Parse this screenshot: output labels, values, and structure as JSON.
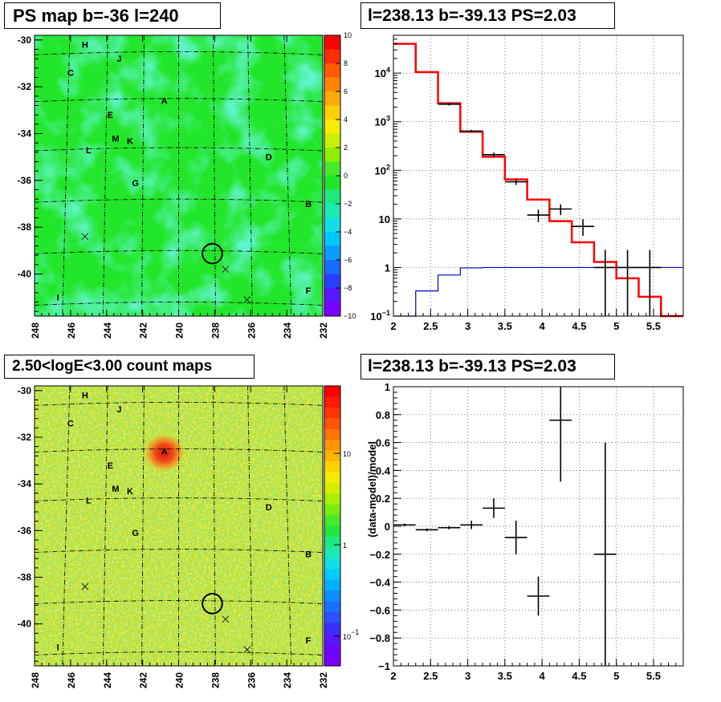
{
  "titles": {
    "ps_map": "PS map b=-36 l=240",
    "spectrum": "l=238.13 b=-39.13 PS=2.03",
    "count_map": "2.50<logE<3.00 count maps",
    "residual": "l=238.13 b=-39.13 PS=2.03"
  },
  "colors": {
    "data": "#000000",
    "model": "#ff0000",
    "third_series": "#0000cc",
    "map_green": "#22e62a",
    "map_cyan": "#1ee9a0",
    "hotspot": "#e81818"
  },
  "chart_data": [
    {
      "type": "heatmap",
      "title": "PS map b=-36 l=240",
      "x_ticks": [
        "248",
        "246",
        "244",
        "242",
        "240",
        "238",
        "236",
        "234",
        "232"
      ],
      "y_ticks": [
        "-30",
        "-32",
        "-34",
        "-36",
        "-38",
        "-40"
      ],
      "xlim": [
        248,
        232
      ],
      "ylim": [
        -41.8,
        -29.8
      ],
      "colorbar": {
        "range": [
          -10,
          10
        ],
        "ticks": [
          "10",
          "8",
          "6",
          "4",
          "2",
          "0",
          "-2",
          "-4",
          "-6",
          "-8",
          "-10"
        ]
      },
      "sources": [
        {
          "label": "H",
          "l": 245.2,
          "b": -30.2
        },
        {
          "label": "J",
          "l": 243.3,
          "b": -30.8
        },
        {
          "label": "C",
          "l": 246.0,
          "b": -31.4
        },
        {
          "label": "A",
          "l": 240.8,
          "b": -32.6
        },
        {
          "label": "E",
          "l": 243.8,
          "b": -33.2
        },
        {
          "label": "M",
          "l": 243.5,
          "b": -34.2
        },
        {
          "label": "K",
          "l": 242.7,
          "b": -34.3
        },
        {
          "label": "L",
          "l": 245.0,
          "b": -34.7
        },
        {
          "label": "D",
          "l": 235.0,
          "b": -35.0
        },
        {
          "label": "G",
          "l": 242.4,
          "b": -36.1
        },
        {
          "label": "B",
          "l": 232.8,
          "b": -37.0
        },
        {
          "label": "I",
          "l": 246.7,
          "b": -41.0
        },
        {
          "label": "F",
          "l": 232.8,
          "b": -40.7
        }
      ],
      "crosses": [
        {
          "l": 245.2,
          "b": -38.4
        },
        {
          "l": 237.4,
          "b": -39.8
        },
        {
          "l": 236.2,
          "b": -41.1
        }
      ],
      "circle": {
        "l": 238.13,
        "b": -39.13,
        "r": 0.55
      }
    },
    {
      "type": "line",
      "title": "l=238.13 b=-39.13 PS=2.03",
      "xlim": [
        2,
        5.9
      ],
      "ylim": [
        0.1,
        60000
      ],
      "yscale": "log",
      "x_ticks": [
        "2",
        "2.5",
        "3",
        "3.5",
        "4",
        "4.5",
        "5",
        "5.5"
      ],
      "y_ticks": [
        {
          "v": 0.1,
          "label": "10^-1"
        },
        {
          "v": 1,
          "label": "1"
        },
        {
          "v": 10,
          "label": "10"
        },
        {
          "v": 100,
          "label": "10^2"
        },
        {
          "v": 1000,
          "label": "10^3"
        },
        {
          "v": 10000,
          "label": "10^4"
        }
      ],
      "grid": true,
      "edges": [
        2.0,
        2.3,
        2.6,
        2.9,
        3.2,
        3.5,
        3.8,
        4.1,
        4.4,
        4.7,
        5.0,
        5.3,
        5.6,
        5.9
      ],
      "series": [
        {
          "values": [
            40000,
            10500,
            2400,
            620,
            190,
            65,
            25,
            9,
            3.3,
            1.3,
            0.6,
            0.25,
            0.1
          ]
        },
        {
          "values": [
            0.1,
            0.33,
            0.7,
            0.98,
            1.0,
            1.0,
            1.0,
            1.0,
            1.0,
            1.0,
            1.0,
            1.0,
            1.0
          ]
        }
      ],
      "data_points": [
        {
          "x": 2.75,
          "y": 2300,
          "lo": 2150,
          "hi": 2450
        },
        {
          "x": 3.05,
          "y": 640,
          "lo": 600,
          "hi": 680
        },
        {
          "x": 3.35,
          "y": 210,
          "lo": 190,
          "hi": 232
        },
        {
          "x": 3.65,
          "y": 58,
          "lo": 50,
          "hi": 66
        },
        {
          "x": 3.95,
          "y": 12,
          "lo": 8.6,
          "hi": 15.5
        },
        {
          "x": 4.25,
          "y": 16,
          "lo": 12,
          "hi": 20
        },
        {
          "x": 4.55,
          "y": 7,
          "lo": 4.5,
          "hi": 9.8
        },
        {
          "x": 4.85,
          "y": 1,
          "lo": 0.1,
          "hi": 2.3
        },
        {
          "x": 5.15,
          "y": 1,
          "lo": 0.1,
          "hi": 2.3
        },
        {
          "x": 5.45,
          "y": 1,
          "lo": 0.1,
          "hi": 2.3
        }
      ]
    },
    {
      "type": "heatmap",
      "title": "2.50<logE<3.00 count maps",
      "x_ticks": [
        "248",
        "246",
        "244",
        "242",
        "240",
        "238",
        "236",
        "234",
        "232"
      ],
      "y_ticks": [
        "-30",
        "-32",
        "-34",
        "-36",
        "-38",
        "-40"
      ],
      "xlim": [
        248,
        232
      ],
      "ylim": [
        -41.8,
        -29.8
      ],
      "colorbar": {
        "scale": "log",
        "ticks": [
          "10",
          "1",
          "10^-1"
        ]
      }
    },
    {
      "type": "scatter",
      "title": "l=238.13 b=-39.13 PS=2.03",
      "xlim": [
        2,
        5.9
      ],
      "ylim": [
        -1,
        1
      ],
      "ylabel": "(data-model)/model",
      "x_ticks": [
        "2",
        "2.5",
        "3",
        "3.5",
        "4",
        "4.5",
        "5",
        "5.5"
      ],
      "y_ticks": [
        "-1",
        "-0.8",
        "-0.6",
        "-0.4",
        "-0.2",
        "0",
        "0.2",
        "0.4",
        "0.6",
        "0.8",
        "1"
      ],
      "grid": true,
      "points": [
        {
          "x": 2.15,
          "y": 0.01,
          "dx": 0.15,
          "dy": 0.01
        },
        {
          "x": 2.45,
          "y": -0.025,
          "dx": 0.15,
          "dy": 0.01
        },
        {
          "x": 2.75,
          "y": -0.01,
          "dx": 0.15,
          "dy": 0.012
        },
        {
          "x": 3.05,
          "y": 0.01,
          "dx": 0.15,
          "dy": 0.03
        },
        {
          "x": 3.35,
          "y": 0.13,
          "dx": 0.15,
          "dy": 0.07
        },
        {
          "x": 3.65,
          "y": -0.08,
          "dx": 0.15,
          "dy": 0.12
        },
        {
          "x": 3.95,
          "y": -0.5,
          "dx": 0.15,
          "dy": 0.14
        },
        {
          "x": 4.25,
          "y": 0.76,
          "dx": 0.15,
          "dy": 0.44
        },
        {
          "x": 4.85,
          "y": -0.2,
          "dx": 0.15,
          "dy": 0.8
        }
      ]
    }
  ]
}
